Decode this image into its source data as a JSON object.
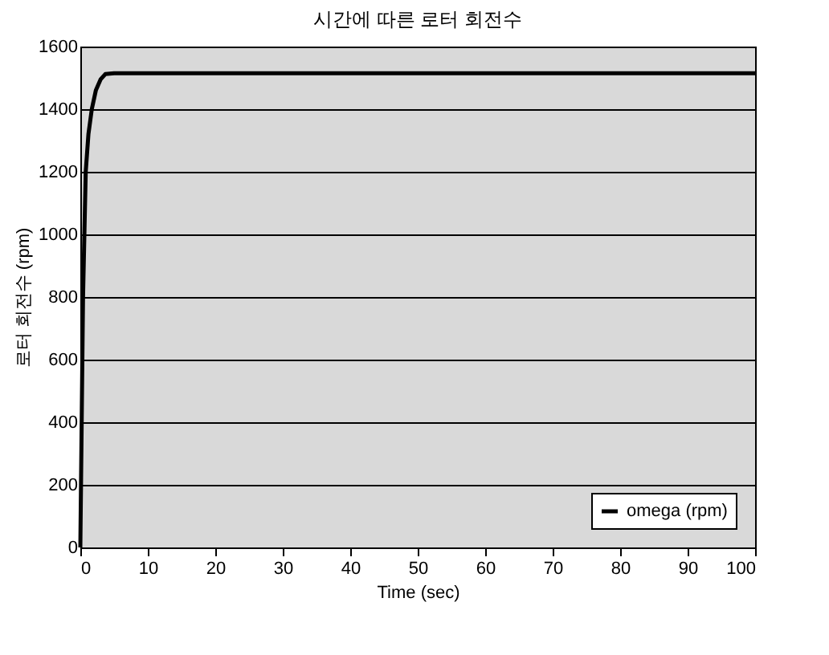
{
  "chart_data": {
    "type": "line",
    "title": "시간에 따른 로터 회전수",
    "xlabel": "Time (sec)",
    "ylabel": "로터 회전수 (rpm)",
    "x": [
      0,
      0.2,
      0.4,
      0.8,
      1.2,
      1.7,
      2.3,
      3,
      3.7,
      5,
      100
    ],
    "series": [
      {
        "name": "omega (rpm)",
        "color": "#000000",
        "values": [
          0,
          400,
          800,
          1200,
          1320,
          1400,
          1460,
          1495,
          1512,
          1515,
          1515
        ]
      }
    ],
    "xlim": [
      0,
      100
    ],
    "xticks": [
      0,
      10,
      20,
      30,
      40,
      50,
      60,
      70,
      80,
      90,
      100
    ],
    "ylim": [
      0,
      1600
    ],
    "yticks": [
      0,
      200,
      400,
      600,
      800,
      1000,
      1200,
      1400,
      1600
    ],
    "grid": "y",
    "legend": "bottom right",
    "marker": "none",
    "line_style": "solid"
  }
}
